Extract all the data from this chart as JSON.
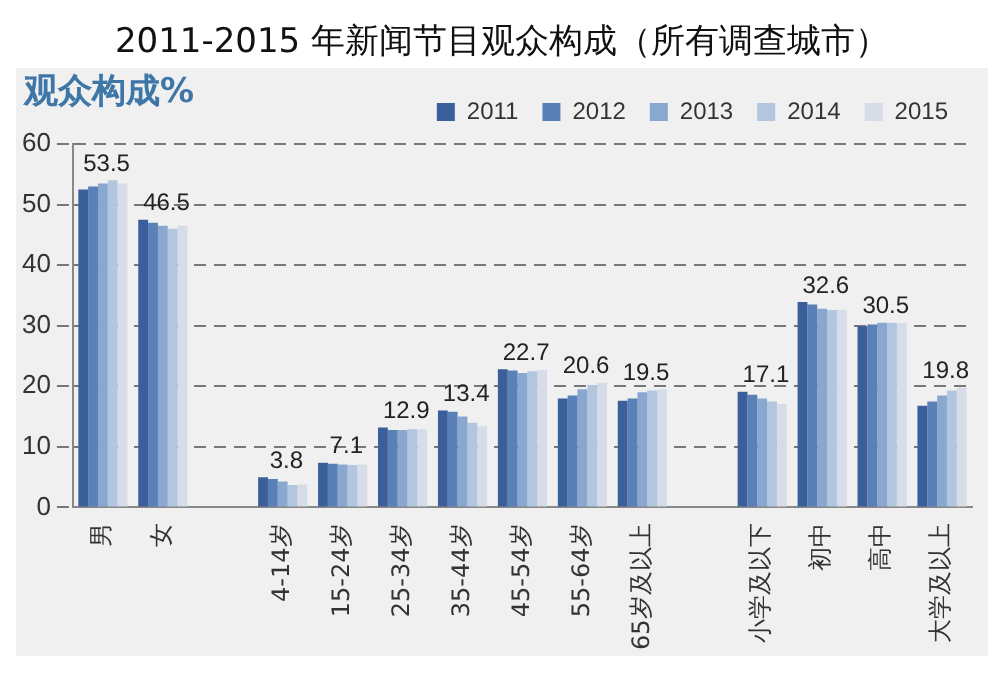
{
  "chart_data": {
    "type": "bar",
    "title": "2011-2015 年新闻节目观众构成（所有调查城市）",
    "ylabel": "观众构成%",
    "categories": [
      "男",
      "女",
      null,
      "4-14岁",
      "15-24岁",
      "25-34岁",
      "35-44岁",
      "45-54岁",
      "55-64岁",
      "65岁及以上",
      null,
      "小学及以下",
      "初中",
      "高中",
      "大学及以上"
    ],
    "series": [
      {
        "name": "2011",
        "color": "#3a5f9a",
        "values": [
          52.5,
          47.5,
          null,
          5.0,
          7.4,
          13.2,
          16.0,
          22.8,
          18.0,
          17.6,
          null,
          19.1,
          33.9,
          29.9,
          16.8
        ]
      },
      {
        "name": "2012",
        "color": "#5a80b8",
        "values": [
          53,
          47,
          null,
          4.7,
          7.2,
          12.8,
          15.8,
          22.6,
          18.5,
          18.0,
          null,
          18.6,
          33.5,
          30.2,
          17.5
        ]
      },
      {
        "name": "2013",
        "color": "#8aa7cf",
        "values": [
          53.5,
          46.5,
          null,
          4.3,
          7.1,
          12.8,
          15.0,
          22.2,
          19.5,
          19.0,
          null,
          18.0,
          32.8,
          30.5,
          18.5
        ]
      },
      {
        "name": "2014",
        "color": "#b3c6e0",
        "values": [
          54,
          46,
          null,
          3.7,
          7.0,
          12.9,
          14.0,
          22.5,
          20.2,
          19.3,
          null,
          17.5,
          32.6,
          30.5,
          19.3
        ]
      },
      {
        "name": "2015",
        "color": "#d6dde8",
        "values": [
          53.5,
          46.5,
          null,
          3.8,
          7.1,
          12.9,
          13.4,
          22.7,
          20.6,
          19.5,
          null,
          17.1,
          32.6,
          30.5,
          19.8
        ],
        "value_labels": [
          "53.5",
          "46.5",
          null,
          "3.8",
          "7.1",
          "12.9",
          "13.4",
          "22.7",
          "20.6",
          "19.5",
          null,
          "17.1",
          "32.6",
          "30.5",
          "19.8"
        ]
      }
    ],
    "ylim": [
      0,
      60
    ],
    "yticks": [
      0,
      10,
      20,
      30,
      40,
      50,
      60
    ],
    "grid": "y",
    "legend": "top right"
  }
}
